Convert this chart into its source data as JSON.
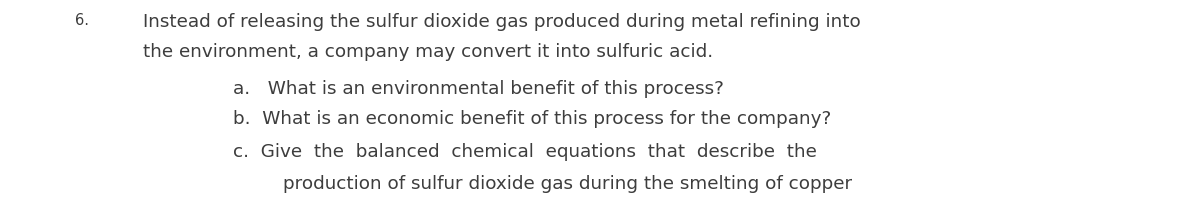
{
  "background_color": "#ffffff",
  "text_color": "#3d3d3d",
  "number": "6.",
  "line1": "Instead of releasing the sulfur dioxide gas produced during metal refining into",
  "line2": "the environment, a company may convert it into sulfuric acid.",
  "line_a": "a.   What is an environmental benefit of this process?",
  "line_b": "b.  What is an economic benefit of this process for the company?",
  "line_c1": "c.  Give  the  balanced  chemical  equations  that  describe  the",
  "line_c2": "production of sulfur dioxide gas during the smelting of copper",
  "font_size_main": 13.2,
  "font_size_number": 10.5,
  "fig_width": 12.0,
  "fig_height": 2.21,
  "dpi": 100
}
